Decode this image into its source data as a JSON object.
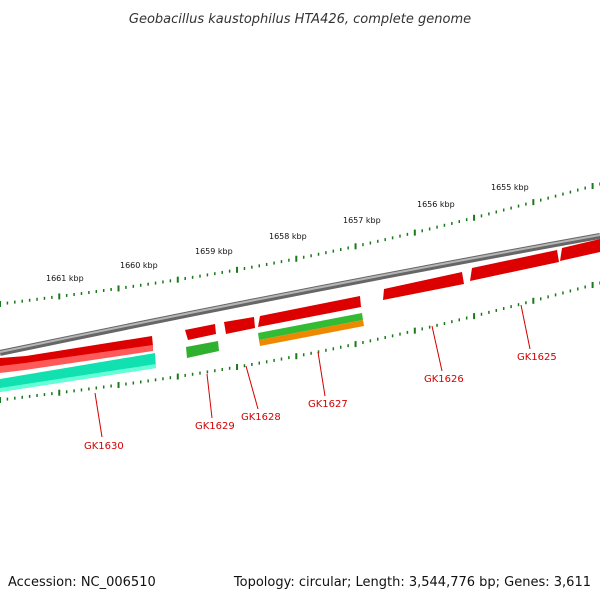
{
  "title": "Geobacillus kaustophilus HTA426, complete genome",
  "footer": {
    "accession": "Accession: NC_006510",
    "summary": "Topology: circular; Length: 3,544,776 bp; Genes: 3,611"
  },
  "scale_labels": [
    "1655 kbp",
    "1656 kbp",
    "1657 kbp",
    "1658 kbp",
    "1659 kbp",
    "1660 kbp",
    "1661 kbp"
  ],
  "genes": [
    {
      "id": "GK1625",
      "color": "#e00000"
    },
    {
      "id": "GK1626",
      "color": "#e00000"
    },
    {
      "id": "GK1627",
      "color": "#e00000"
    },
    {
      "id": "GK1628",
      "color": "#e00000"
    },
    {
      "id": "GK1629",
      "color": "#e00000"
    },
    {
      "id": "GK1630",
      "color": "#e00000"
    }
  ],
  "colors": {
    "backbone": "#8a8a8a",
    "ticks": "#1a7a1a",
    "forward_cds": "#e00000",
    "rna_green": "#33bb33",
    "rna_orange": "#ee8800",
    "cyan_feature": "#22ddaa",
    "label_red": "#d40000"
  }
}
